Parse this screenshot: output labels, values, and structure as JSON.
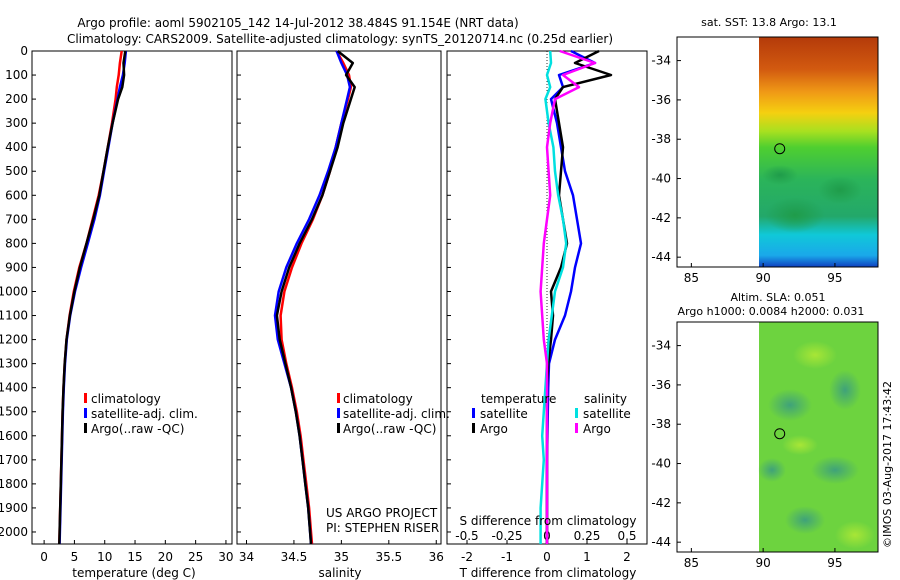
{
  "header": {
    "title_line1": "Argo profile: aoml 5902105_142 14-Jul-2012 38.484S 91.154E (NRT data)",
    "title_line2": "Climatology: CARS2009. Satellite-adjusted climatology: synTS_20120714.nc (0.25d earlier)"
  },
  "colors": {
    "climatology": "#ff0000",
    "satellite": "#0000ff",
    "argo": "#000000",
    "satellite_s": "#00e0e0",
    "argo_s": "#ff00ff"
  },
  "depth_ticks": [
    "0",
    "100",
    "200",
    "300",
    "400",
    "500",
    "600",
    "700",
    "800",
    "900",
    "1000",
    "1100",
    "1200",
    "1300",
    "1400",
    "1500",
    "1600",
    "1700",
    "1800",
    "1900",
    "2000"
  ],
  "chart_data": [
    {
      "type": "line",
      "panel": "temperature",
      "xlabel": "temperature (deg C)",
      "ylabel": "",
      "xlim": [
        -2,
        31
      ],
      "ylim": [
        2050,
        0
      ],
      "x_ticks": [
        "0",
        "5",
        "10",
        "15",
        "20",
        "25",
        "30"
      ],
      "y": [
        0,
        50,
        100,
        150,
        200,
        300,
        400,
        500,
        600,
        700,
        800,
        900,
        1000,
        1100,
        1200,
        1300,
        1400,
        1500,
        1600,
        1700,
        1800,
        1900,
        2000,
        2050
      ],
      "series": [
        {
          "name": "climatology",
          "color_key": "climatology",
          "x": [
            12.8,
            12.5,
            12.3,
            12.0,
            11.8,
            11.2,
            10.5,
            9.8,
            9.0,
            8.0,
            7.0,
            5.8,
            4.9,
            4.2,
            3.7,
            3.4,
            3.2,
            3.05,
            2.95,
            2.85,
            2.75,
            2.65,
            2.55,
            2.5
          ]
        },
        {
          "name": "satellite-adj. clim.",
          "color_key": "satellite",
          "x": [
            13.5,
            13.3,
            13.0,
            12.5,
            12.1,
            11.3,
            10.6,
            9.9,
            9.2,
            8.3,
            7.2,
            6.1,
            5.1,
            4.3,
            3.75,
            3.45,
            3.25,
            3.1,
            3.0,
            2.9,
            2.8,
            2.7,
            2.6,
            2.55
          ]
        },
        {
          "name": "Argo(..raw -QC)",
          "color_key": "argo",
          "x": [
            13.4,
            13.1,
            13.2,
            12.9,
            12.2,
            11.3,
            10.5,
            9.8,
            9.1,
            8.1,
            7.0,
            5.9,
            5.0,
            4.25,
            3.7,
            3.4,
            3.2,
            3.05,
            2.95,
            2.85,
            2.75,
            2.65,
            2.55,
            2.5
          ]
        }
      ],
      "legend": [
        "climatology",
        "satellite-adj. clim.",
        "Argo(..raw -QC)"
      ]
    },
    {
      "type": "line",
      "panel": "salinity",
      "xlabel": "salinity",
      "xlim": [
        33.9,
        36.05
      ],
      "ylim": [
        2050,
        0
      ],
      "x_ticks": [
        "34",
        "34.5",
        "35",
        "35.5",
        "36"
      ],
      "y": [
        0,
        50,
        100,
        150,
        200,
        300,
        400,
        500,
        600,
        700,
        800,
        900,
        1000,
        1100,
        1200,
        1300,
        1400,
        1500,
        1600,
        1700,
        1800,
        1900,
        2000,
        2050
      ],
      "series": [
        {
          "name": "climatology",
          "color_key": "climatology",
          "x": [
            34.95,
            35.02,
            35.08,
            35.1,
            35.07,
            35.0,
            34.94,
            34.88,
            34.8,
            34.7,
            34.58,
            34.48,
            34.4,
            34.36,
            34.37,
            34.42,
            34.48,
            34.53,
            34.57,
            34.6,
            34.63,
            34.66,
            34.68,
            34.69
          ]
        },
        {
          "name": "satellite-adj. clim.",
          "color_key": "satellite",
          "x": [
            34.95,
            35.0,
            35.06,
            35.09,
            35.06,
            35.0,
            34.94,
            34.86,
            34.77,
            34.66,
            34.53,
            34.42,
            34.34,
            34.3,
            34.33,
            34.4,
            34.47,
            34.52,
            34.56,
            34.59,
            34.62,
            34.65,
            34.67,
            34.68
          ]
        },
        {
          "name": "Argo(..raw -QC)",
          "color_key": "argo",
          "x": [
            34.96,
            35.12,
            35.05,
            35.14,
            35.1,
            35.02,
            34.96,
            34.88,
            34.8,
            34.69,
            34.56,
            34.45,
            34.37,
            34.32,
            34.35,
            34.41,
            34.47,
            34.52,
            34.56,
            34.59,
            34.62,
            34.65,
            34.67,
            34.68
          ]
        }
      ],
      "legend": [
        "climatology",
        "satellite-adj. clim.",
        "Argo(..raw -QC)"
      ]
    },
    {
      "type": "line",
      "panel": "difference",
      "xlabel": "T difference from climatology",
      "x2label": "S difference from climatology",
      "xlim": [
        -2.5,
        2.5
      ],
      "x2lim": [
        -0.625,
        0.625
      ],
      "x_ticks": [
        "-2",
        "-1",
        "0",
        "1",
        "2"
      ],
      "x2_ticks": [
        "-0.5",
        "-0.25",
        "0",
        "0.25",
        "0.5"
      ],
      "ylim": [
        2050,
        0
      ],
      "y": [
        0,
        50,
        100,
        150,
        200,
        300,
        400,
        500,
        600,
        700,
        800,
        900,
        1000,
        1100,
        1200,
        1300,
        1400,
        1500,
        1600,
        1700,
        1800,
        1900,
        2000,
        2050
      ],
      "series": [
        {
          "name": "temperature satellite",
          "color_key": "satellite",
          "x": [
            0.6,
            1.2,
            0.3,
            0.4,
            0.1,
            0.25,
            0.35,
            0.45,
            0.65,
            0.75,
            0.85,
            0.7,
            0.6,
            0.45,
            0.2,
            0.05,
            0.03,
            0.02,
            0.01,
            0.0,
            0.0,
            0.0,
            0.0,
            0.0
          ]
        },
        {
          "name": "temperature Argo",
          "color_key": "argo",
          "x": [
            1.3,
            0.7,
            1.6,
            0.4,
            0.2,
            0.3,
            0.4,
            0.35,
            0.3,
            0.4,
            0.5,
            0.35,
            0.1,
            0.15,
            0.1,
            0.03,
            0.0,
            0.0,
            0.0,
            0.0,
            0.0,
            0.0,
            0.0,
            0.0
          ]
        },
        {
          "name": "salinity satellite",
          "color_key": "satellite_s",
          "x": [
            0.02,
            0.025,
            0.0,
            0.02,
            -0.01,
            0.01,
            0.04,
            0.05,
            0.07,
            0.1,
            0.12,
            0.1,
            0.05,
            0.03,
            0.01,
            0.0,
            -0.01,
            -0.02,
            -0.03,
            -0.02,
            -0.03,
            -0.04,
            -0.04,
            -0.04
          ]
        },
        {
          "name": "salinity Argo",
          "color_key": "argo_s",
          "x": [
            0.08,
            0.3,
            0.1,
            0.2,
            0.05,
            0.02,
            0.0,
            0.01,
            0.02,
            0.0,
            -0.02,
            -0.03,
            -0.04,
            -0.03,
            -0.02,
            0.0,
            0.0,
            0.0,
            0.0,
            0.0,
            0.0,
            0.0,
            0.0,
            0.0
          ]
        }
      ],
      "legend_temperature_title": "temperature",
      "legend_salinity_title": "salinity",
      "legend": [
        "satellite",
        "Argo",
        "satellite",
        "Argo"
      ]
    },
    {
      "type": "heatmap",
      "panel": "sst_map",
      "title": "sat. SST: 13.8 Argo: 13.1",
      "xlim": [
        84,
        98
      ],
      "ylim": [
        -44.5,
        -32.8
      ],
      "x_ticks": [
        "85",
        "90",
        "95"
      ],
      "y_ticks": [
        "-34",
        "-36",
        "-38",
        "-40",
        "-42",
        "-44"
      ],
      "data_lon_range": [
        90,
        98
      ],
      "marker": {
        "lon": 91.154,
        "lat": -38.484
      }
    },
    {
      "type": "heatmap",
      "panel": "sla_map",
      "title_line1": "Altim. SLA: 0.051",
      "title_line2": "Argo h1000: 0.0084 h2000: 0.031",
      "xlim": [
        84,
        98
      ],
      "ylim": [
        -44.5,
        -32.8
      ],
      "x_ticks": [
        "85",
        "90",
        "95"
      ],
      "y_ticks": [
        "-34",
        "-36",
        "-38",
        "-40",
        "-42",
        "-44"
      ],
      "data_lon_range": [
        90,
        98
      ],
      "marker": {
        "lon": 91.154,
        "lat": -38.484
      }
    }
  ],
  "credit": {
    "project_line1": "US ARGO PROJECT",
    "project_line2": "PI: STEPHEN RISER",
    "stamp": "©IMOS 03-Aug-2017 17:43:42"
  }
}
